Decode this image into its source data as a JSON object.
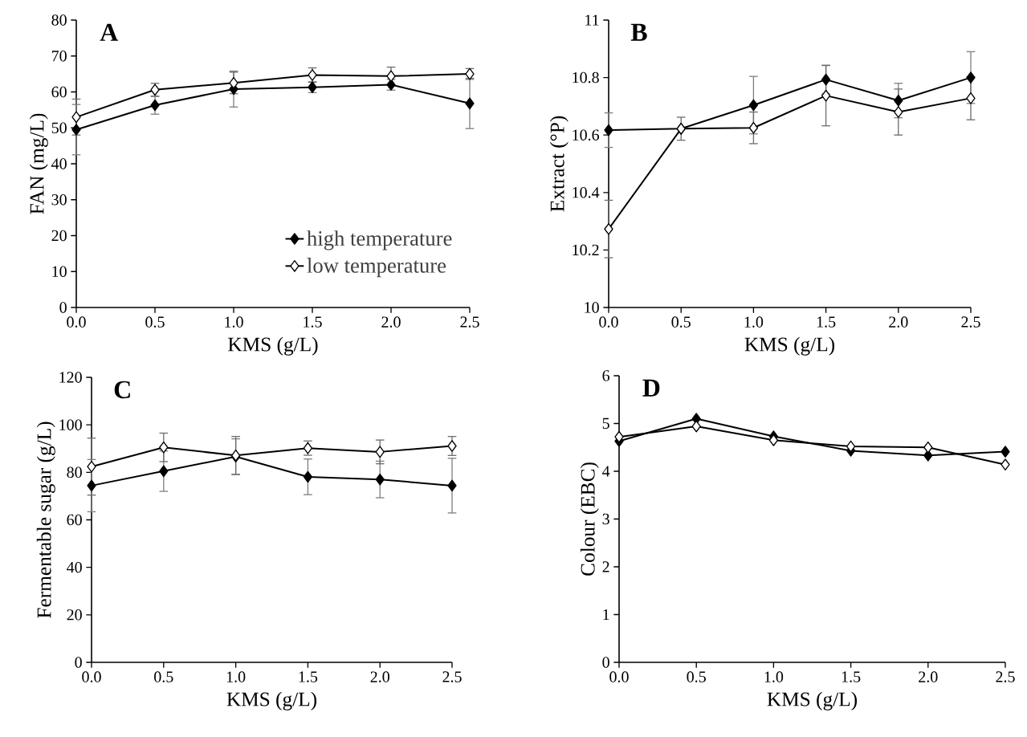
{
  "chart_data": [
    {
      "type": "line",
      "title": "A",
      "xlabel": "KMS (g/L)",
      "ylabel": "FAN (mg/L)",
      "x": [
        0,
        0.5,
        1.0,
        1.5,
        2.0,
        2.5
      ],
      "xlim": [
        0,
        2.5
      ],
      "xticks": [
        {
          "value": 0,
          "label": "0.0"
        },
        {
          "value": 0.5,
          "label": "0.5"
        },
        {
          "value": 1.0,
          "label": "1.0"
        },
        {
          "value": 1.5,
          "label": "1.5"
        },
        {
          "value": 2.0,
          "label": "2.0"
        },
        {
          "value": 2.5,
          "label": "2.5"
        }
      ],
      "ylim": [
        0,
        80
      ],
      "yticks": [
        0,
        10,
        20,
        30,
        40,
        50,
        60,
        70,
        80
      ],
      "legend": "bottom right",
      "marker": "diamond",
      "line_style": "solid",
      "series": [
        {
          "name": "high temperature",
          "color": "#000000",
          "values": [
            49.5,
            56.3,
            60.8,
            61.3,
            62.0,
            56.8
          ],
          "errors": [
            7,
            2.5,
            5,
            1.5,
            1.5,
            7
          ]
        },
        {
          "name": "low temperature",
          "color": "#000000",
          "values": [
            53.0,
            60.6,
            62.5,
            64.7,
            64.4,
            65.0
          ],
          "errors": [
            5,
            1.8,
            3,
            2,
            2.5,
            1.5
          ]
        }
      ]
    },
    {
      "type": "line",
      "title": "B",
      "xlabel": "KMS (g/L)",
      "ylabel": "Extract (°P)",
      "x": [
        0,
        0.5,
        1.0,
        1.5,
        2.0,
        2.5
      ],
      "xlim": [
        0,
        2.5
      ],
      "xticks": [
        {
          "value": 0,
          "label": "0.0"
        },
        {
          "value": 0.5,
          "label": "0.5"
        },
        {
          "value": 1.0,
          "label": "1.0"
        },
        {
          "value": 1.5,
          "label": "1.5"
        },
        {
          "value": 2.0,
          "label": "2.0"
        },
        {
          "value": 2.5,
          "label": "2.5"
        }
      ],
      "ylim": [
        10,
        11
      ],
      "yticks": [
        10,
        10.2,
        10.4,
        10.6,
        10.8,
        11
      ],
      "marker": "diamond",
      "line_style": "solid",
      "series": [
        {
          "color": "#000000",
          "values": [
            10.617,
            10.622,
            10.704,
            10.793,
            10.72,
            10.8
          ],
          "errors": [
            0.06,
            null,
            0.1,
            0.05,
            0.06,
            0.09
          ]
        },
        {
          "color": "#000000",
          "values": [
            10.273,
            10.622,
            10.625,
            10.737,
            10.68,
            10.728
          ],
          "errors": [
            0.1,
            0.04,
            0.055,
            0.105,
            0.08,
            0.075
          ]
        }
      ]
    },
    {
      "type": "line",
      "title": "C",
      "xlabel": "KMS (g/L)",
      "ylabel": "Fermentable sugar (g/L)",
      "x": [
        0,
        0.5,
        1.0,
        1.5,
        2.0,
        2.5
      ],
      "xlim": [
        0,
        2.5
      ],
      "xticks": [
        {
          "value": 0,
          "label": "0.0"
        },
        {
          "value": 0.5,
          "label": "0.5"
        },
        {
          "value": 1.0,
          "label": "1.0"
        },
        {
          "value": 1.5,
          "label": "1.5"
        },
        {
          "value": 2.0,
          "label": "2.0"
        },
        {
          "value": 2.5,
          "label": "2.5"
        }
      ],
      "ylim": [
        0,
        120
      ],
      "yticks": [
        0,
        20,
        40,
        60,
        80,
        100,
        120
      ],
      "marker": "diamond",
      "line_style": "solid",
      "series": [
        {
          "color": "#000000",
          "values": [
            74.4,
            80.5,
            86.6,
            78.1,
            77.0,
            74.4
          ],
          "errors": [
            11,
            8.5,
            7.5,
            7.5,
            7.7,
            11.5
          ]
        },
        {
          "color": "#000000",
          "values": [
            82.4,
            90.5,
            87.1,
            90.2,
            88.6,
            91.1
          ],
          "errors": [
            12,
            6,
            8,
            3,
            5,
            4
          ]
        }
      ]
    },
    {
      "type": "line",
      "title": "D",
      "xlabel": "KMS (g/L)",
      "ylabel": "Colour (EBC)",
      "x": [
        0,
        0.5,
        1.0,
        1.5,
        2.0,
        2.5
      ],
      "xlim": [
        0,
        2.5
      ],
      "xticks": [
        {
          "value": 0,
          "label": "0.0"
        },
        {
          "value": 0.5,
          "label": "0.5"
        },
        {
          "value": 1.0,
          "label": "1.0"
        },
        {
          "value": 1.5,
          "label": "1.5"
        },
        {
          "value": 2.0,
          "label": "2.0"
        },
        {
          "value": 2.5,
          "label": "2.5"
        }
      ],
      "ylim": [
        0,
        6
      ],
      "yticks": [
        0,
        1,
        2,
        3,
        4,
        5,
        6
      ],
      "marker": "diamond",
      "line_style": "solid",
      "series": [
        {
          "color": "#000000",
          "values": [
            4.63,
            5.1,
            4.73,
            4.43,
            4.33,
            4.41
          ]
        },
        {
          "color": "#000000",
          "values": [
            4.72,
            4.94,
            4.65,
            4.52,
            4.5,
            4.14
          ]
        }
      ]
    }
  ]
}
